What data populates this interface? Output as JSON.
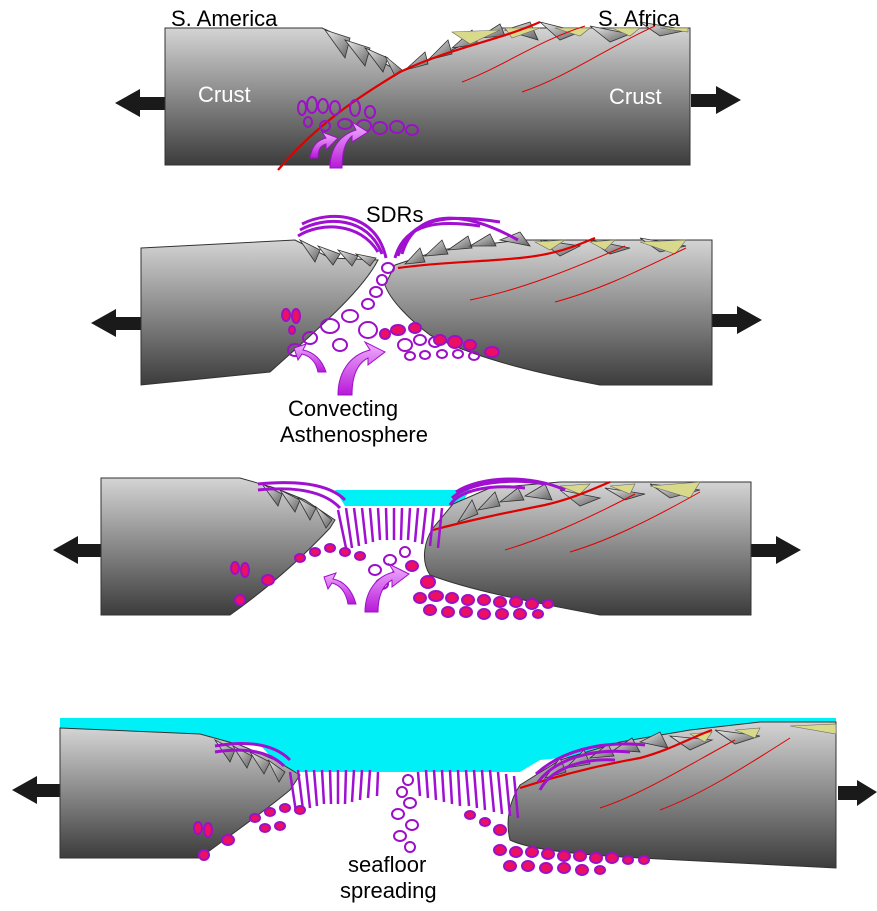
{
  "panels": [
    {
      "labels": {
        "left_continent": "S. America",
        "right_continent": "S. Africa",
        "crust_left": "Crust",
        "crust_right": "Crust"
      }
    },
    {
      "labels": {
        "sdrs": "SDRs",
        "convecting_line1": "Convecting",
        "convecting_line2": "Asthenosphere"
      }
    },
    {
      "labels": {}
    },
    {
      "labels": {
        "seafloor_line1": "seafloor",
        "seafloor_line2": "spreading"
      }
    }
  ],
  "colors": {
    "crust_top": "#d4d4d4",
    "crust_bottom": "#3a3a3a",
    "sediment": "#d8d98a",
    "fault": "#e00000",
    "magma_outline": "#9c10c8",
    "magma_fill": "#ee1060",
    "arrow_magma": "#c020e0",
    "ocean": "#00f0f8",
    "extension_arrow": "#1a1a1a"
  }
}
